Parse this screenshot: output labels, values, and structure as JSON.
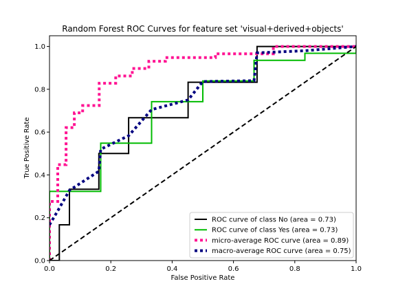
{
  "chart_data": {
    "type": "line",
    "title": "Random Forest ROC Curves for feature set 'visual+derived+objects'",
    "xlabel": "False Positive Rate",
    "ylabel": "True Positive Rate",
    "xlim": [
      0.0,
      1.0
    ],
    "ylim": [
      0.0,
      1.05
    ],
    "xticks": [
      "0.0",
      "0.2",
      "0.4",
      "0.6",
      "0.8",
      "1.0"
    ],
    "yticks": [
      "0.0",
      "0.2",
      "0.4",
      "0.6",
      "0.8",
      "1.0"
    ],
    "grid": false,
    "legend_position": "lower-right",
    "series": [
      {
        "name": "ROC curve of class No (area = 0.73)",
        "color": "#000000",
        "style": "solid",
        "x": [
          0,
          0.032,
          0.032,
          0.065,
          0.065,
          0.161,
          0.161,
          0.258,
          0.258,
          0.452,
          0.452,
          0.677,
          0.677,
          1.0,
          1.0
        ],
        "y": [
          0,
          0,
          0.167,
          0.167,
          0.333,
          0.333,
          0.5,
          0.5,
          0.667,
          0.667,
          0.833,
          0.833,
          1.0,
          1.0,
          1.0
        ]
      },
      {
        "name": "ROC curve of class Yes (area = 0.73)",
        "color": "#00bb00",
        "style": "solid",
        "x": [
          0,
          0,
          0.167,
          0.167,
          0.333,
          0.333,
          0.5,
          0.5,
          0.667,
          0.667,
          0.833,
          0.833,
          1.0,
          1.0
        ],
        "y": [
          0,
          0.323,
          0.323,
          0.548,
          0.548,
          0.742,
          0.742,
          0.839,
          0.839,
          0.935,
          0.935,
          0.968,
          0.968,
          1.0
        ]
      },
      {
        "name": "micro-average ROC curve (area = 0.89)",
        "color": "#ff1493",
        "style": "dotted",
        "x": [
          0,
          0,
          0.027,
          0.027,
          0.054,
          0.054,
          0.081,
          0.081,
          0.108,
          0.108,
          0.162,
          0.162,
          0.216,
          0.216,
          0.27,
          0.27,
          0.324,
          0.324,
          0.378,
          0.378,
          0.541,
          0.541,
          0.73,
          0.73,
          1.0
        ],
        "y": [
          0,
          0.276,
          0.276,
          0.448,
          0.448,
          0.621,
          0.621,
          0.69,
          0.69,
          0.724,
          0.724,
          0.828,
          0.828,
          0.862,
          0.862,
          0.897,
          0.897,
          0.931,
          0.931,
          0.948,
          0.948,
          0.966,
          0.966,
          1.0,
          1.0
        ]
      },
      {
        "name": "macro-average ROC curve (area = 0.75)",
        "color": "#000080",
        "style": "dotted",
        "x": [
          0,
          0.032,
          0.065,
          0.161,
          0.167,
          0.258,
          0.333,
          0.452,
          0.5,
          0.667,
          0.677,
          0.833,
          1.0
        ],
        "y": [
          0.167,
          0.245,
          0.328,
          0.417,
          0.52,
          0.583,
          0.705,
          0.75,
          0.836,
          0.84,
          0.97,
          0.98,
          1.0
        ]
      },
      {
        "name": "",
        "color": "#000000",
        "style": "dashed",
        "x": [
          0,
          1
        ],
        "y": [
          0,
          1
        ]
      }
    ]
  }
}
